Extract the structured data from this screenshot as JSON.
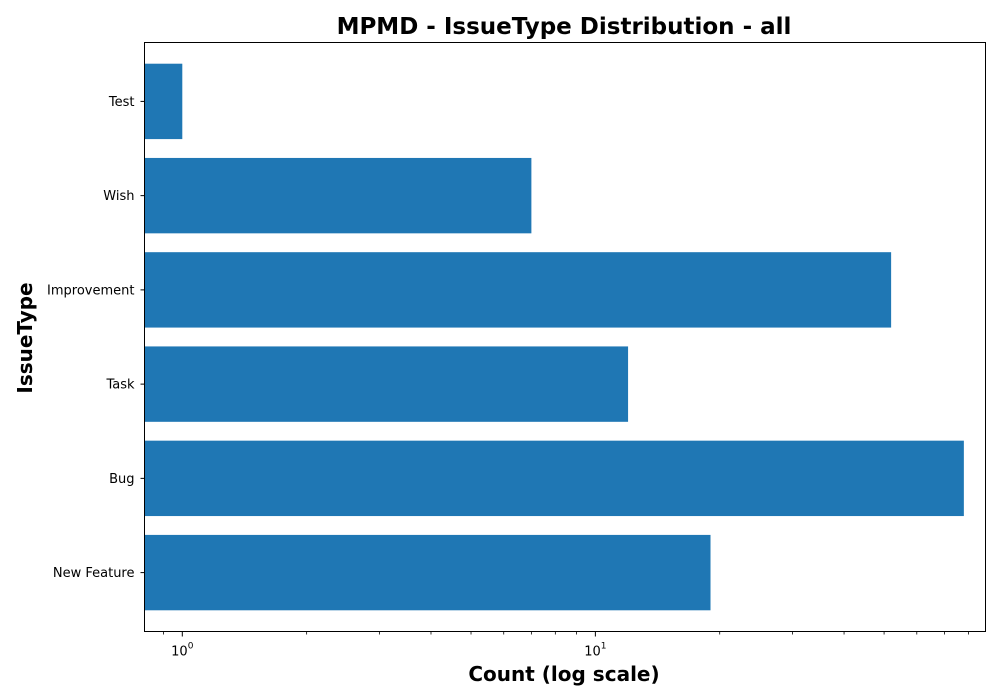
{
  "chart_data": {
    "type": "bar",
    "orientation": "horizontal",
    "title": "MPMD - IssueType Distribution - all",
    "xlabel": "Count (log scale)",
    "ylabel": "IssueType",
    "x_scale": "log",
    "xlim": [
      0.81,
      88
    ],
    "x_ticks": [
      {
        "value": 1,
        "base": "10",
        "exp": "0"
      },
      {
        "value": 10,
        "base": "10",
        "exp": "1"
      }
    ],
    "categories": [
      "New Feature",
      "Bug",
      "Task",
      "Improvement",
      "Wish",
      "Test"
    ],
    "values": [
      19,
      78,
      12,
      52,
      7,
      1
    ],
    "bar_color": "#1f77b4",
    "grid": false
  }
}
